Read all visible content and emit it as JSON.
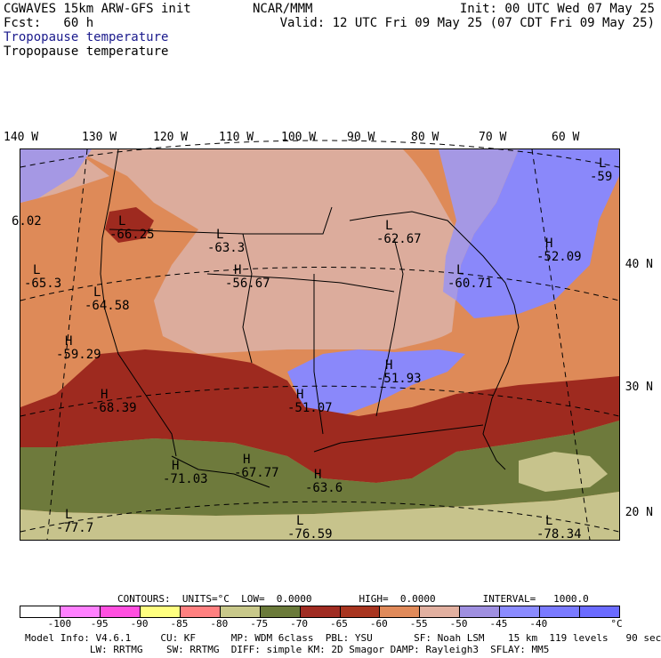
{
  "header": {
    "model": "CGWAVES 15km ARW-GFS init",
    "org": "NCAR/MMM",
    "init": "Init: 00 UTC Wed 07 May 25",
    "fcst": "Fcst:   60 h",
    "valid": "Valid: 12 UTC Fri 09 May 25 (07 CDT Fri 09 May 25)",
    "field_blue": "Tropopause temperature",
    "field_black": "Tropopause temperature"
  },
  "lon_labels": [
    "140 W",
    "130 W",
    "120 W",
    "110 W",
    "100 W",
    "90 W",
    "80 W",
    "70 W",
    "60 W"
  ],
  "lat_labels": [
    "40 N",
    "30 N",
    "20 N"
  ],
  "map_marks": [
    {
      "type": "L",
      "value": "-66.25"
    },
    {
      "type": "L",
      "value": "-63.3"
    },
    {
      "type": "H",
      "value": "-56.67"
    },
    {
      "type": "L",
      "value": "-62.67"
    },
    {
      "type": "H",
      "value": "-52.09"
    },
    {
      "type": "L",
      "value": "-60.71"
    },
    {
      "type": "L",
      "value": "-65.3"
    },
    {
      "type": "L",
      "value": "-64.58"
    },
    {
      "type": "H",
      "value": "-59.29"
    },
    {
      "type": "H",
      "value": "-68.39"
    },
    {
      "type": "H",
      "value": "-51.07"
    },
    {
      "type": "H",
      "value": "-51.93"
    },
    {
      "type": "H",
      "value": "-71.03"
    },
    {
      "type": "H",
      "value": "-67.77"
    },
    {
      "type": "H",
      "value": "-63.6"
    },
    {
      "type": "L",
      "value": "-77.7"
    },
    {
      "type": "L",
      "value": "-76.59"
    },
    {
      "type": "L",
      "value": "-78.34"
    },
    {
      "type": "L",
      "value": "-59"
    },
    {
      "type": "",
      "value": "6.02"
    }
  ],
  "contours": "CONTOURS:  UNITS=°C  LOW=  0.0000        HIGH=  0.0000        INTERVAL=   1000.0",
  "colorbar": {
    "colors": [
      "#ffffff",
      "#ff80ff",
      "#ff4fe0",
      "#ffff80",
      "#ff8080",
      "#c8c88a",
      "#6b7a3a",
      "#a02c22",
      "#a83520",
      "#e08a5a",
      "#e2b0a0",
      "#9f8fe0",
      "#8b8bff",
      "#7a7aff",
      "#6b6bff"
    ],
    "ticks": [
      "-100",
      "-95",
      "-90",
      "-85",
      "-80",
      "-75",
      "-70",
      "-65",
      "-60",
      "-55",
      "-50",
      "-45",
      "-40"
    ],
    "unit": "°C"
  },
  "footer": {
    "line1": "Model Info: V4.6.1     CU: KF      MP: WDM 6class  PBL: YSU       SF: Noah LSM    15 km  119 levels   90 sec",
    "line2": "           LW: RRTMG    SW: RRTMG  DIFF: simple KM: 2D Smagor DAMP: Rayleigh3  SFLAY: MM5"
  },
  "fill_colors": {
    "dark_green": "#6e7a3c",
    "khaki": "#c7c38c",
    "red_brown": "#9e2a1f",
    "orange": "#de8a58",
    "pink": "#dcac9c",
    "lavender": "#a598e4",
    "blue": "#8a88fa"
  }
}
